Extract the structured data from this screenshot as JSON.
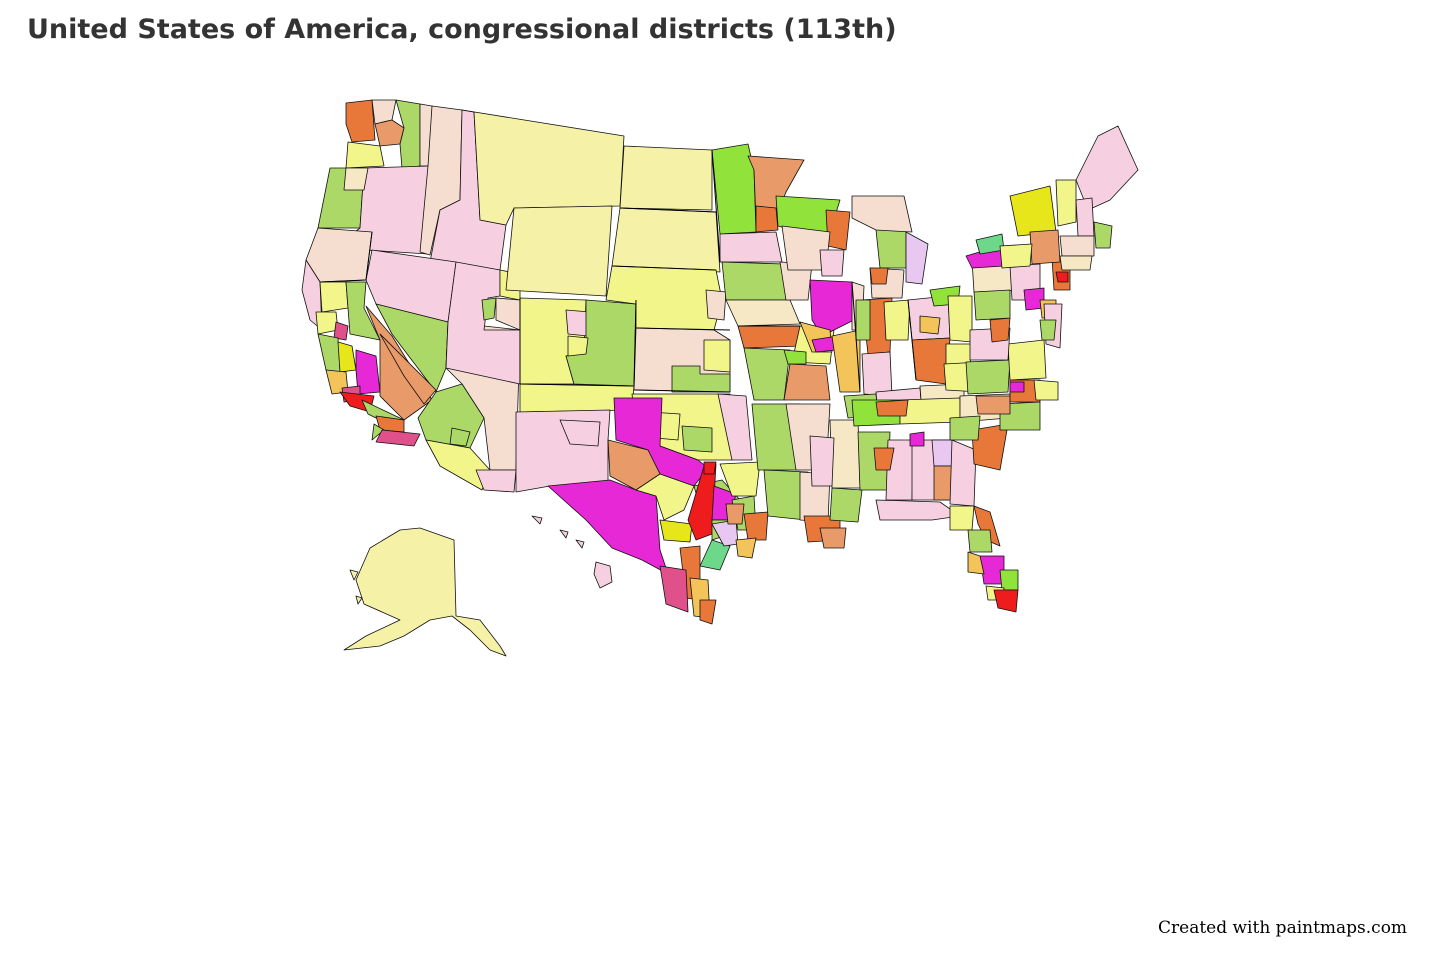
{
  "title": "United States of America, congressional districts (113th)",
  "credit": "Created with paintmaps.com",
  "palette": {
    "pale_yellow": "#f5f2a8",
    "light_yellow": "#f2f58a",
    "cream": "#f6e8c4",
    "peach": "#f5ddd0",
    "light_pink": "#f6d0e0",
    "lavender": "#e8c8f0",
    "yellow": "#e6e61a",
    "light_green": "#acd868",
    "bright_green": "#92e23c",
    "mint_green": "#6ed88a",
    "salmon": "#e89a68",
    "orange": "#e8783a",
    "light_orange": "#f2c45a",
    "magenta": "#e628d6",
    "rose": "#e0508a",
    "red": "#ee1c1c",
    "border": "#111111"
  }
}
